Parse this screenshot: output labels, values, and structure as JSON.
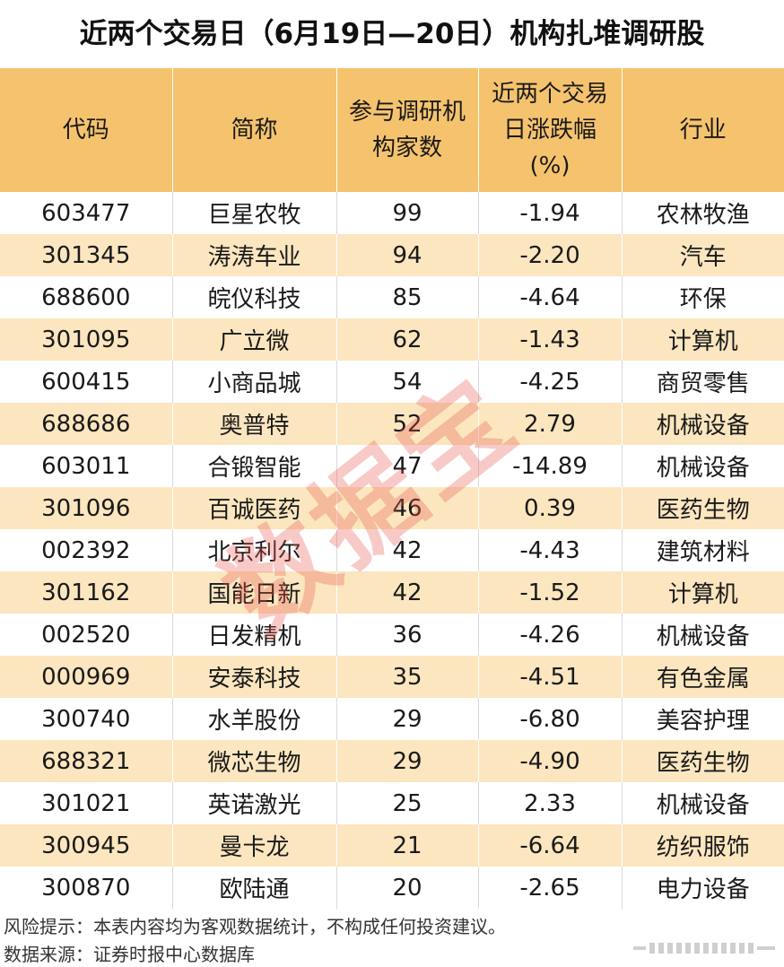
{
  "title": "近两个交易日（6月19日—20日）机构扎堆调研股",
  "table": {
    "headers": [
      {
        "lines": [
          "代码"
        ]
      },
      {
        "lines": [
          "简称"
        ]
      },
      {
        "lines": [
          "参与调研机",
          "构家数"
        ]
      },
      {
        "lines": [
          "近两个交易",
          "日涨跌幅",
          "(%)"
        ]
      },
      {
        "lines": [
          "行业"
        ]
      }
    ],
    "rows": [
      [
        "603477",
        "巨星农牧",
        "99",
        "-1.94",
        "农林牧渔"
      ],
      [
        "301345",
        "涛涛车业",
        "94",
        "-2.20",
        "汽车"
      ],
      [
        "688600",
        "皖仪科技",
        "85",
        "-4.64",
        "环保"
      ],
      [
        "301095",
        "广立微",
        "62",
        "-1.43",
        "计算机"
      ],
      [
        "600415",
        "小商品城",
        "54",
        "-4.25",
        "商贸零售"
      ],
      [
        "688686",
        "奥普特",
        "52",
        "2.79",
        "机械设备"
      ],
      [
        "603011",
        "合锻智能",
        "47",
        "-14.89",
        "机械设备"
      ],
      [
        "301096",
        "百诚医药",
        "46",
        "0.39",
        "医药生物"
      ],
      [
        "002392",
        "北京利尔",
        "42",
        "-4.43",
        "建筑材料"
      ],
      [
        "301162",
        "国能日新",
        "42",
        "-1.52",
        "计算机"
      ],
      [
        "002520",
        "日发精机",
        "36",
        "-4.26",
        "机械设备"
      ],
      [
        "000969",
        "安泰科技",
        "35",
        "-4.51",
        "有色金属"
      ],
      [
        "300740",
        "水羊股份",
        "29",
        "-6.80",
        "美容护理"
      ],
      [
        "688321",
        "微芯生物",
        "29",
        "-4.90",
        "医药生物"
      ],
      [
        "301021",
        "英诺激光",
        "25",
        "2.33",
        "机械设备"
      ],
      [
        "300945",
        "曼卡龙",
        "21",
        "-6.64",
        "纺织服饰"
      ],
      [
        "300870",
        "欧陆通",
        "20",
        "-2.65",
        "电力设备"
      ]
    ]
  },
  "watermark": "数据宝",
  "footnotes": {
    "risk": "风险提示：本表内容均为客观数据统计，不构成任何投资建议。",
    "source": "数据来源：证券时报中心数据库"
  },
  "colors": {
    "header_bg": "#f5c36e",
    "stripe_bg": "#fbe6bf",
    "watermark": "#e85a50"
  }
}
